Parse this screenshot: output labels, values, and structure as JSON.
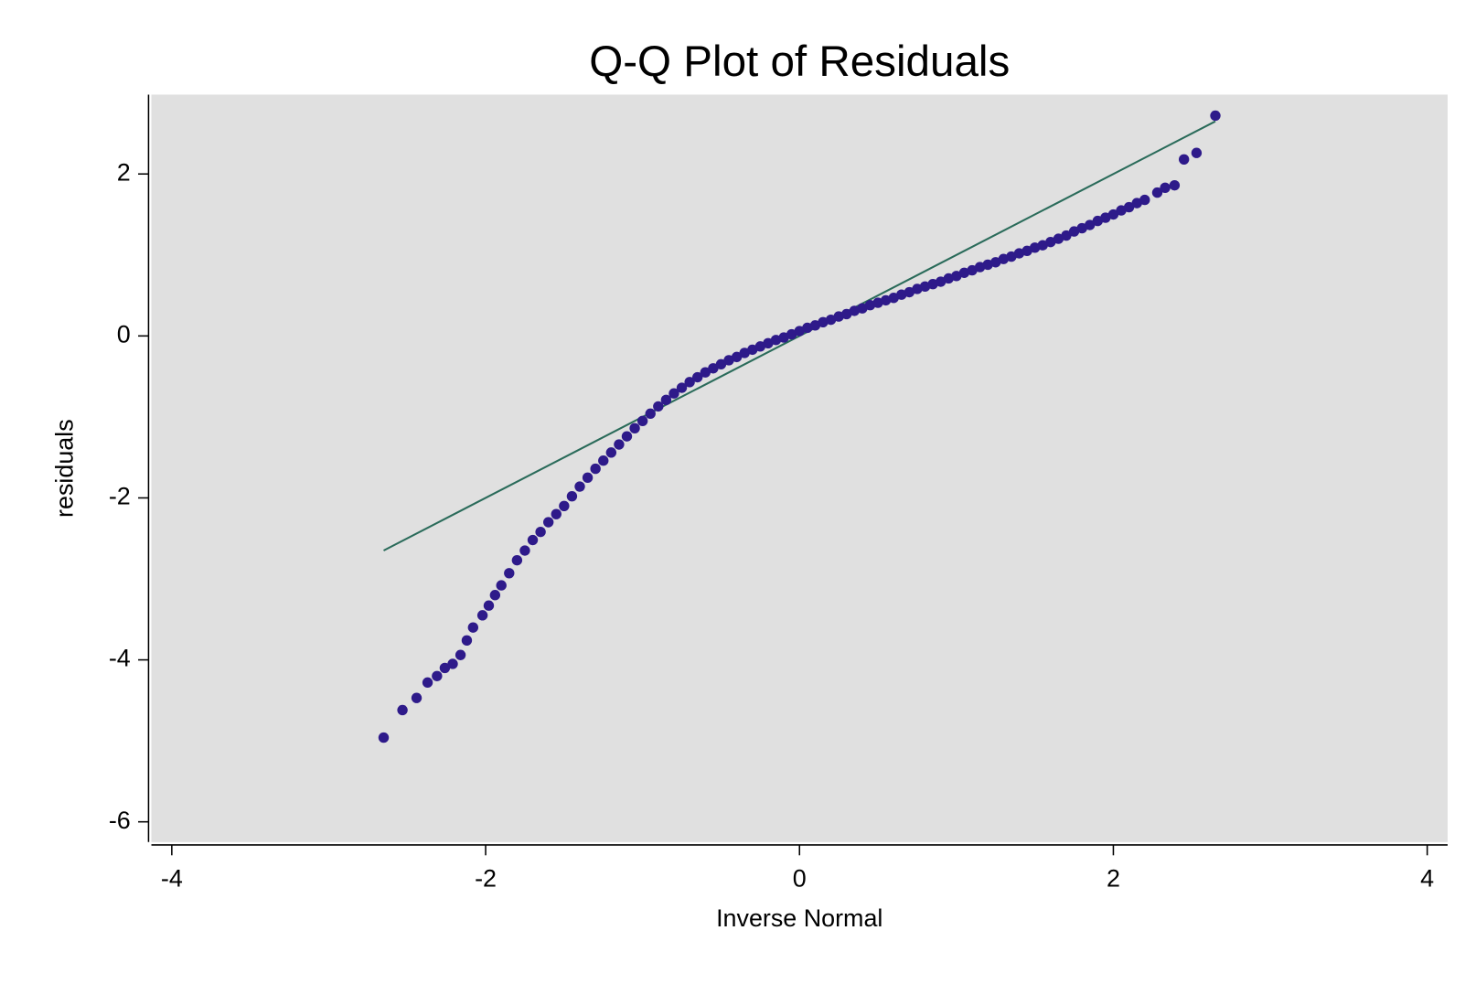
{
  "chart_data": {
    "type": "scatter",
    "title": "Q-Q Plot of Residuals",
    "x_label": "Inverse Normal",
    "y_label": "residuals",
    "xlim": [
      -4.13,
      4.13
    ],
    "ylim": [
      -6.25,
      2.98
    ],
    "xticks": [
      -4,
      -2,
      0,
      2,
      4
    ],
    "yticks": [
      -6,
      -4,
      -2,
      0,
      2
    ],
    "background": "#e0e0e0",
    "series": [
      {
        "color": "#2e1a8a",
        "x": [
          -2.65,
          -2.53,
          -2.44,
          -2.37,
          -2.31,
          -2.26,
          -2.21,
          -2.16,
          -2.12,
          -2.08,
          -2.02,
          -1.98,
          -1.94,
          -1.9,
          -1.85,
          -1.8,
          -1.75,
          -1.7,
          -1.65,
          -1.6,
          -1.55,
          -1.5,
          -1.45,
          -1.4,
          -1.35,
          -1.3,
          -1.25,
          -1.2,
          -1.15,
          -1.1,
          -1.05,
          -1.0,
          -0.95,
          -0.9,
          -0.85,
          -0.8,
          -0.75,
          -0.7,
          -0.65,
          -0.6,
          -0.55,
          -0.5,
          -0.45,
          -0.4,
          -0.35,
          -0.3,
          -0.25,
          -0.2,
          -0.15,
          -0.1,
          -0.05,
          0,
          0.05,
          0.1,
          0.15,
          0.2,
          0.25,
          0.3,
          0.35,
          0.4,
          0.45,
          0.5,
          0.55,
          0.6,
          0.65,
          0.7,
          0.75,
          0.8,
          0.85,
          0.9,
          0.95,
          1.0,
          1.05,
          1.1,
          1.15,
          1.2,
          1.25,
          1.3,
          1.35,
          1.4,
          1.45,
          1.5,
          1.55,
          1.6,
          1.65,
          1.7,
          1.75,
          1.8,
          1.85,
          1.9,
          1.95,
          2.0,
          2.05,
          2.1,
          2.15,
          2.2,
          2.28,
          2.33,
          2.39,
          2.45,
          2.53,
          2.65
        ],
        "values": [
          -4.96,
          -4.62,
          -4.47,
          -4.28,
          -4.2,
          -4.1,
          -4.05,
          -3.94,
          -3.76,
          -3.6,
          -3.45,
          -3.33,
          -3.2,
          -3.08,
          -2.93,
          -2.77,
          -2.65,
          -2.52,
          -2.42,
          -2.3,
          -2.2,
          -2.1,
          -1.98,
          -1.86,
          -1.75,
          -1.64,
          -1.54,
          -1.44,
          -1.34,
          -1.24,
          -1.14,
          -1.05,
          -0.96,
          -0.87,
          -0.79,
          -0.71,
          -0.64,
          -0.57,
          -0.51,
          -0.45,
          -0.4,
          -0.35,
          -0.3,
          -0.26,
          -0.21,
          -0.17,
          -0.13,
          -0.09,
          -0.05,
          -0.02,
          0.02,
          0.06,
          0.1,
          0.13,
          0.17,
          0.2,
          0.24,
          0.27,
          0.31,
          0.34,
          0.38,
          0.41,
          0.44,
          0.47,
          0.51,
          0.54,
          0.58,
          0.61,
          0.64,
          0.67,
          0.71,
          0.74,
          0.78,
          0.81,
          0.85,
          0.88,
          0.91,
          0.95,
          0.98,
          1.02,
          1.05,
          1.09,
          1.12,
          1.16,
          1.2,
          1.24,
          1.29,
          1.33,
          1.37,
          1.42,
          1.46,
          1.5,
          1.55,
          1.59,
          1.64,
          1.68,
          1.77,
          1.83,
          1.86,
          2.18,
          2.26,
          2.72
        ]
      }
    ],
    "reference_line": {
      "color": "#2a6b5a",
      "x": [
        -2.65,
        2.65
      ],
      "values": [
        -2.65,
        2.65
      ]
    }
  }
}
